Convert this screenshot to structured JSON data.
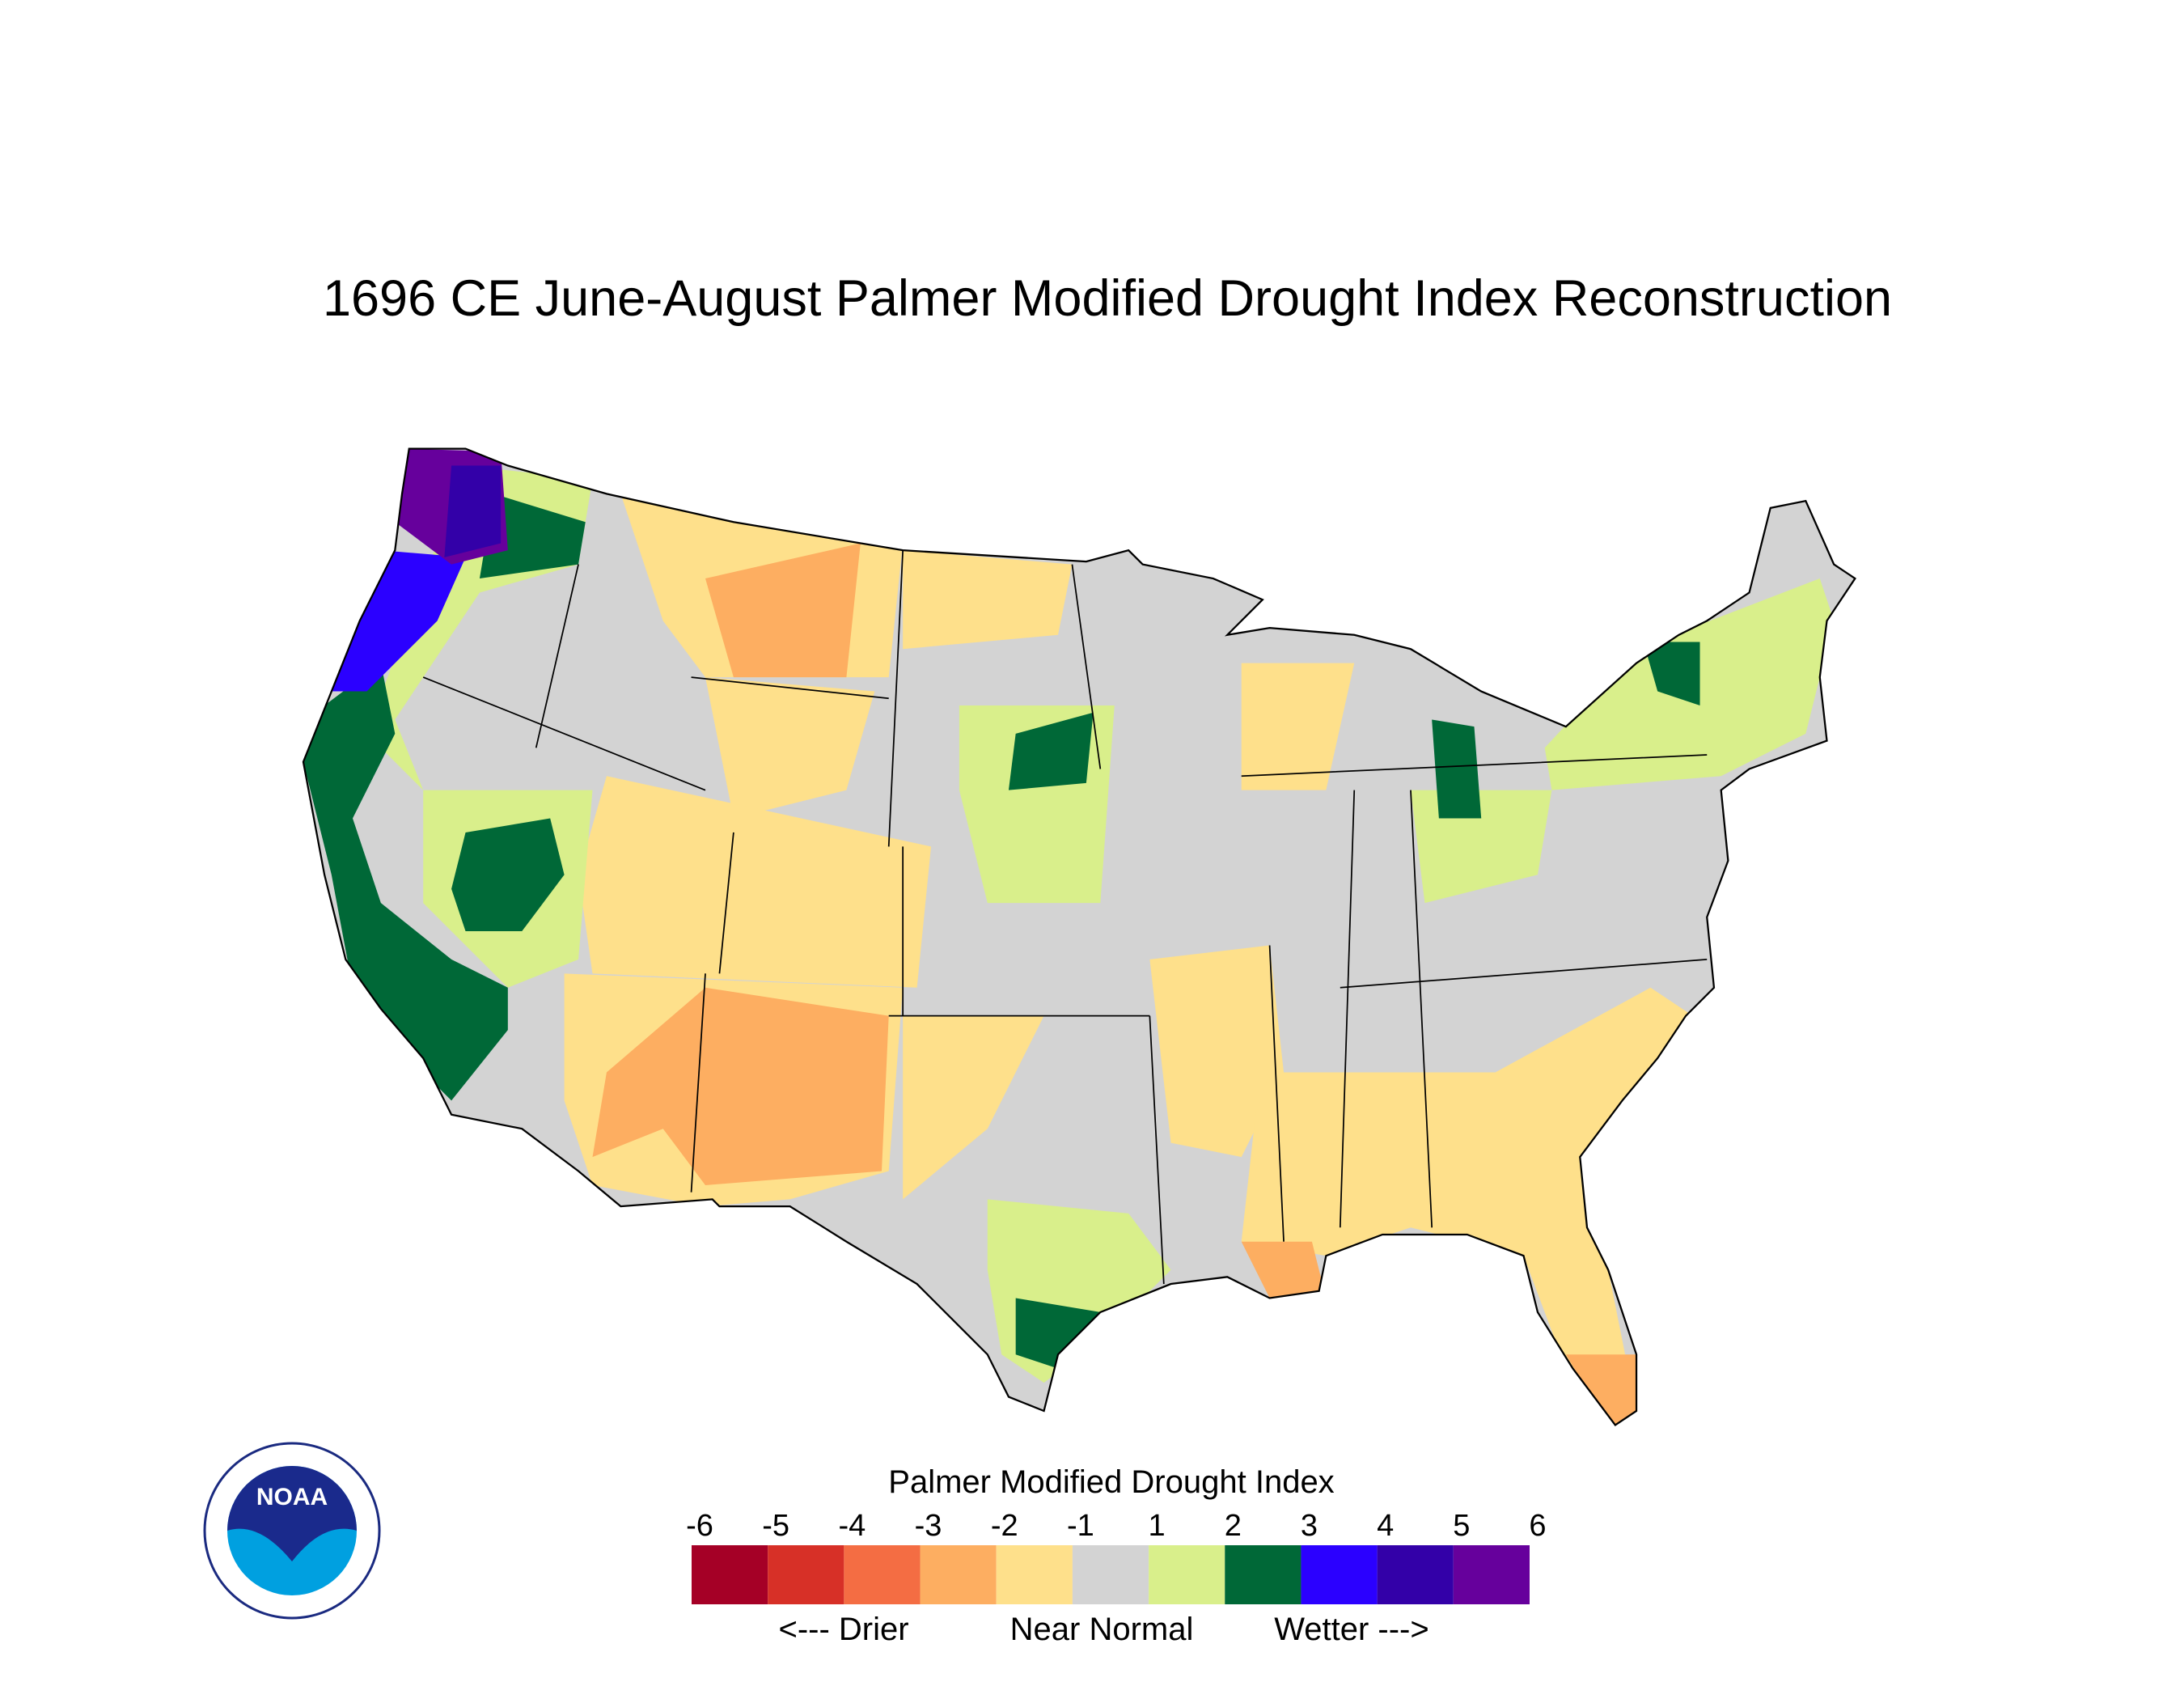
{
  "title": "1696 CE  June-August  Palmer Modified Drought Index Reconstruction",
  "logo": {
    "text": "NOAA"
  },
  "legend": {
    "title": "Palmer Modified Drought Index",
    "ticks": [
      -6,
      -5,
      -4,
      -3,
      -2,
      -1,
      1,
      2,
      3,
      4,
      5,
      6
    ],
    "colors": [
      "#a50026",
      "#d73027",
      "#f46d43",
      "#fdae61",
      "#fee08b",
      "#d3d3d3",
      "#d9ef8b",
      "#006837",
      "#2b00ff",
      "#3300a8",
      "#66009c"
    ],
    "captions": [
      "<--- Drier",
      "Near Normal",
      "Wetter --->"
    ]
  }
}
